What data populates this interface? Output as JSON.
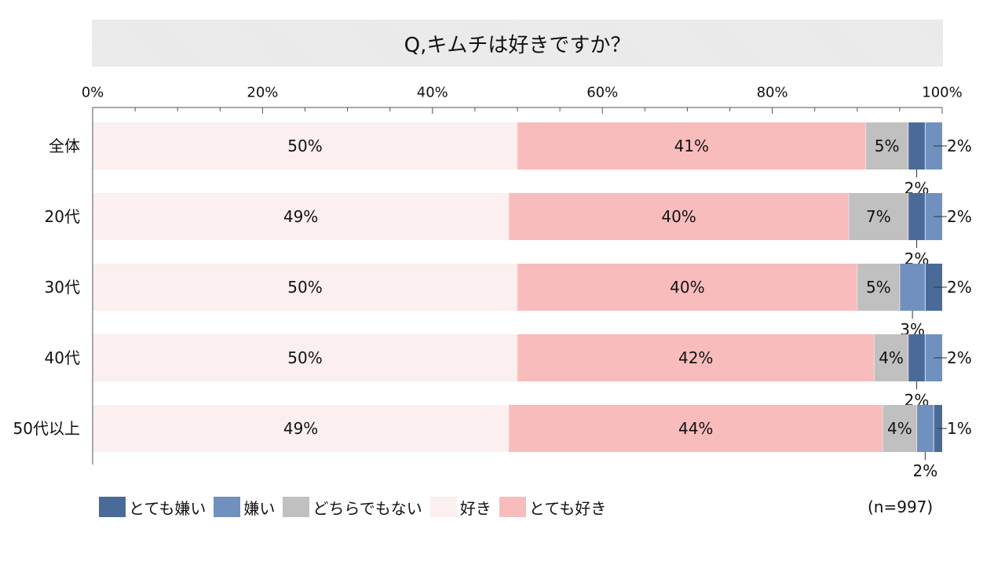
{
  "chart_data": {
    "type": "bar",
    "orientation": "horizontal",
    "stacked": true,
    "title": "Q,キムチは好きですか？",
    "sample_size": "(n=997)",
    "xlim": [
      0,
      100
    ],
    "x_ticks": [
      "0%",
      "20%",
      "40%",
      "60%",
      "80%",
      "100%"
    ],
    "categories": [
      "全体",
      "20代",
      "30代",
      "40代",
      "50代以上"
    ],
    "series": [
      {
        "name": "好き",
        "color": "#fcefef",
        "values": [
          50,
          49,
          50,
          50,
          49
        ],
        "labels": [
          "50%",
          "49%",
          "50%",
          "50%",
          "49%"
        ]
      },
      {
        "name": "とても好き",
        "color": "#f9bcbc",
        "values": [
          41,
          40,
          40,
          42,
          44
        ],
        "labels": [
          "41%",
          "40%",
          "40%",
          "42%",
          "44%"
        ]
      },
      {
        "name": "どちらでもない",
        "color": "#c0c0c0",
        "values": [
          5,
          7,
          5,
          4,
          4
        ],
        "labels": [
          "5%",
          "7%",
          "5%",
          "4%",
          "4%"
        ]
      },
      {
        "name": "とても嫌い",
        "color": "#4a6a9a",
        "values": [
          2,
          2,
          0,
          2,
          0
        ],
        "labels": [
          "2%",
          "2%",
          "",
          "2%",
          ""
        ]
      },
      {
        "name": "嫌い",
        "color": "#7090bf",
        "values": [
          2,
          2,
          3,
          2,
          2
        ],
        "labels": [
          "2%",
          "2%",
          "3%",
          "2%",
          "2%"
        ]
      },
      {
        "name": "とても嫌い",
        "color": "#4a6a9a",
        "values": [
          0,
          0,
          2,
          0,
          1
        ],
        "labels": [
          "",
          "",
          "2%",
          "",
          "1%"
        ]
      }
    ],
    "legend": {
      "placement": "bottom-left",
      "items": [
        {
          "label": "とても嫌い",
          "color": "#4a6a9a"
        },
        {
          "label": "嫌い",
          "color": "#7090bf"
        },
        {
          "label": "どちらでもない",
          "color": "#c0c0c0"
        },
        {
          "label": "好き",
          "color": "#fcefef"
        },
        {
          "label": "とても好き",
          "color": "#f9bcbc"
        }
      ]
    }
  }
}
